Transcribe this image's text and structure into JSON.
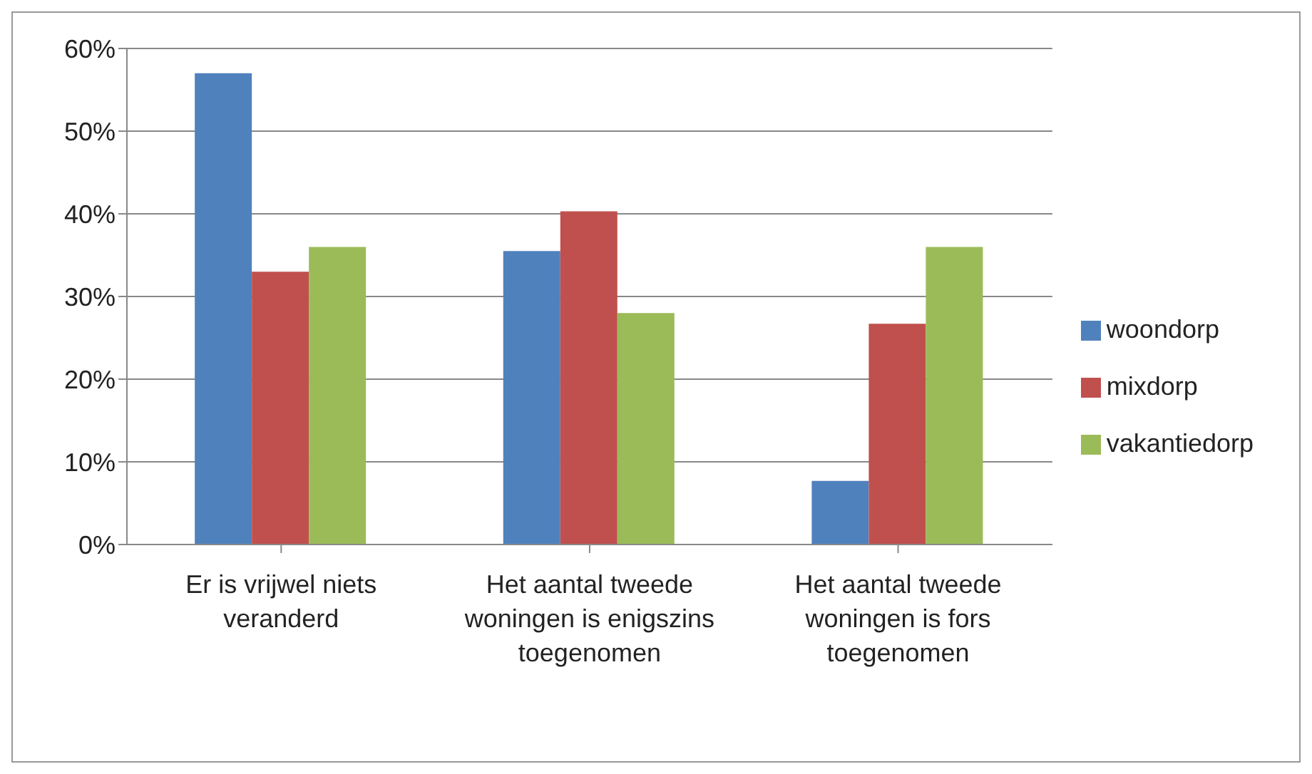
{
  "chart_data": {
    "type": "bar",
    "categories": [
      "Er is vrijwel niets veranderd",
      "Het aantal tweede woningen is enigszins toegenomen",
      "Het aantal tweede woningen is fors toegenomen"
    ],
    "series": [
      {
        "name": "woondorp",
        "color": "#4f81bd",
        "values": [
          57,
          35.5,
          7.7
        ]
      },
      {
        "name": "mixdorp",
        "color": "#c0504d",
        "values": [
          33,
          40.3,
          26.7
        ]
      },
      {
        "name": "vakantiedorp",
        "color": "#9bbb59",
        "values": [
          36,
          28,
          36
        ]
      }
    ],
    "ylim": [
      0,
      60
    ],
    "yticks": [
      {
        "value": 0,
        "label": "0%"
      },
      {
        "value": 10,
        "label": "10%"
      },
      {
        "value": 20,
        "label": "20%"
      },
      {
        "value": 30,
        "label": "30%"
      },
      {
        "value": 40,
        "label": "40%"
      },
      {
        "value": 50,
        "label": "50%"
      },
      {
        "value": 60,
        "label": "60%"
      }
    ],
    "grid": "y",
    "legend": "right"
  }
}
